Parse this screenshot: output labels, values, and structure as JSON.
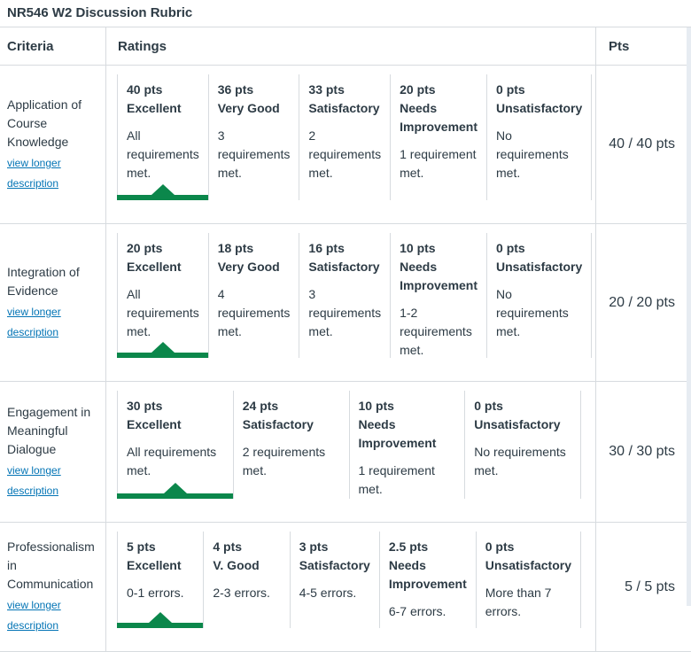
{
  "title": "NR546 W2 Discussion Rubric",
  "colors": {
    "selected_green": "#0B874B",
    "link_blue": "#0374B5",
    "text": "#2D3B45",
    "border": "#D7DBDF"
  },
  "table": {
    "headers": {
      "criteria": "Criteria",
      "ratings": "Ratings",
      "pts": "Pts"
    },
    "rows": [
      {
        "criterion": "Application of Course Knowledge",
        "description_link": "view longer description",
        "score": "40 / 40 pts",
        "ratings": [
          {
            "points": "40 pts",
            "label": "Excellent",
            "description": "All requirements met.",
            "selected": true
          },
          {
            "points": "36 pts",
            "label": "Very Good",
            "description": "3 requirements met.",
            "selected": false
          },
          {
            "points": "33 pts",
            "label": "Satisfactory",
            "description": "2 requirements met.",
            "selected": false
          },
          {
            "points": "20 pts",
            "label": "Needs Improvement",
            "description": "1 requirement met.",
            "selected": false
          },
          {
            "points": "0 pts",
            "label": "Unsatisfactory",
            "description": "No requirements met.",
            "selected": false
          }
        ]
      },
      {
        "criterion": "Integration of Evidence",
        "description_link": "view longer description",
        "score": "20 / 20 pts",
        "ratings": [
          {
            "points": "20 pts",
            "label": "Excellent",
            "description": "All requirements met.",
            "selected": true
          },
          {
            "points": "18 pts",
            "label": "Very Good",
            "description": "4 requirements met.",
            "selected": false
          },
          {
            "points": "16 pts",
            "label": "Satisfactory",
            "description": "3 requirements met.",
            "selected": false
          },
          {
            "points": "10 pts",
            "label": "Needs Improvement",
            "description": "1-2 requirements met.",
            "selected": false
          },
          {
            "points": "0 pts",
            "label": "Unsatisfactory",
            "description": "No requirements met.",
            "selected": false
          }
        ]
      },
      {
        "criterion": "Engagement in Meaningful Dialogue",
        "description_link": "view longer description",
        "score": "30 / 30 pts",
        "ratings": [
          {
            "points": "30 pts",
            "label": "Excellent",
            "description": "All requirements met.",
            "selected": true
          },
          {
            "points": "24 pts",
            "label": "Satisfactory",
            "description": "2 requirements met.",
            "selected": false
          },
          {
            "points": "10 pts",
            "label": "Needs Improvement",
            "description": "1 requirement met.",
            "selected": false
          },
          {
            "points": "0 pts",
            "label": "Unsatisfactory",
            "description": "No requirements met.",
            "selected": false
          }
        ]
      },
      {
        "criterion": "Professionalism in Communication",
        "description_link": "view longer description",
        "score": "5 / 5 pts",
        "ratings": [
          {
            "points": "5 pts",
            "label": "Excellent",
            "description": "0-1 errors.",
            "selected": true
          },
          {
            "points": "4 pts",
            "label": "V. Good",
            "description": "2-3 errors.",
            "selected": false
          },
          {
            "points": "3 pts",
            "label": "Satisfactory",
            "description": "4-5 errors.",
            "selected": false
          },
          {
            "points": "2.5 pts",
            "label": "Needs Improvement",
            "description": "6-7 errors.",
            "selected": false
          },
          {
            "points": "0 pts",
            "label": "Unsatisfactory",
            "description": "More than 7 errors.",
            "selected": false
          }
        ]
      }
    ]
  }
}
